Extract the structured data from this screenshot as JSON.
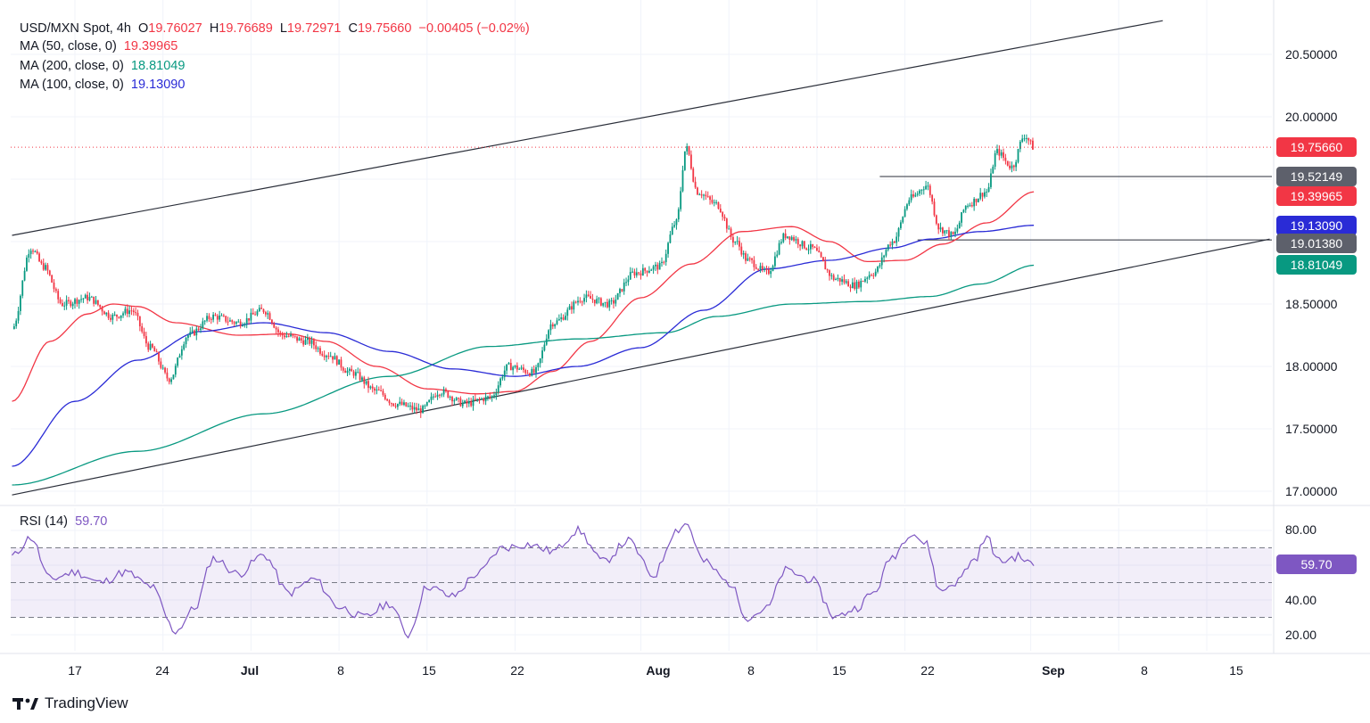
{
  "header": {
    "symbol": "USD/MXN Spot, 4h",
    "o_label": "O",
    "o_value": "19.76027",
    "h_label": "H",
    "h_value": "19.76689",
    "l_label": "L",
    "l_value": "19.72971",
    "c_label": "C",
    "c_value": "19.75660",
    "change": "−0.00405 (−0.02%)"
  },
  "indicators": [
    {
      "label": "MA (50, close, 0)",
      "value": "19.39965",
      "color": "#f23645"
    },
    {
      "label": "MA (200, close, 0)",
      "value": "18.81049",
      "color": "#089981"
    },
    {
      "label": "MA (100, close, 0)",
      "value": "19.13090",
      "color": "#2a2bd6"
    }
  ],
  "rsi": {
    "label": "RSI (14)",
    "value": "59.70",
    "color": "#7e57c2"
  },
  "price_axis": {
    "ticks": [
      "20.50000",
      "20.00000",
      "18.50000",
      "18.00000",
      "17.50000",
      "17.00000"
    ],
    "tick_values": [
      20.5,
      20.0,
      18.5,
      18.0,
      17.5,
      17.0
    ]
  },
  "rsi_axis": {
    "ticks": [
      "80.00",
      "40.00",
      "20.00"
    ],
    "tick_values": [
      80,
      40,
      20
    ]
  },
  "price_labels": [
    {
      "text": "19.75660",
      "value": 19.7566,
      "color": "#f23645"
    },
    {
      "text": "19.52149",
      "value": 19.52149,
      "color": "#5d606b"
    },
    {
      "text": "19.39965",
      "value": 19.39965,
      "color": "#f23645"
    },
    {
      "text": "19.13090",
      "value": 19.1309,
      "color": "#2a2bd6"
    },
    {
      "text": "19.01380",
      "value": 19.0138,
      "color": "#5d606b"
    },
    {
      "text": "18.81049",
      "value": 18.81049,
      "color": "#089981"
    }
  ],
  "time_axis": [
    "17",
    "24",
    "Jul",
    "8",
    "15",
    "22",
    "Aug",
    "8",
    "15",
    "22",
    "Sep",
    "8",
    "15"
  ],
  "brand": "TradingView",
  "chart_data": {
    "type": "candlestick",
    "title": "USD/MXN Spot, 4h",
    "timeframe": "4h",
    "x_range": [
      "Jun 12",
      "Sep 19"
    ],
    "date_ticks": [
      "Jun 17",
      "Jun 24",
      "Jul 1",
      "Jul 8",
      "Jul 15",
      "Jul 22",
      "Aug 1",
      "Aug 8",
      "Aug 15",
      "Aug 22",
      "Sep 1",
      "Sep 8",
      "Sep 15"
    ],
    "date_tick_days": [
      5,
      12,
      19,
      26,
      33,
      40,
      50,
      57,
      64,
      71,
      81,
      88,
      95
    ],
    "ylim": [
      16.88,
      20.85
    ],
    "rsi_ylim": [
      10,
      90
    ],
    "close_path_anchors": [
      [
        0,
        18.3
      ],
      [
        1.5,
        18.95
      ],
      [
        2.5,
        18.8
      ],
      [
        4,
        18.5
      ],
      [
        6,
        18.55
      ],
      [
        8,
        18.4
      ],
      [
        9.5,
        18.45
      ],
      [
        11,
        18.15
      ],
      [
        12.5,
        17.9
      ],
      [
        14,
        18.25
      ],
      [
        16,
        18.4
      ],
      [
        18,
        18.35
      ],
      [
        20,
        18.45
      ],
      [
        21.5,
        18.25
      ],
      [
        23.5,
        18.2
      ],
      [
        25,
        18.1
      ],
      [
        27,
        17.95
      ],
      [
        29,
        17.8
      ],
      [
        30.5,
        17.7
      ],
      [
        32.5,
        17.65
      ],
      [
        34,
        17.8
      ],
      [
        36,
        17.7
      ],
      [
        38,
        17.75
      ],
      [
        39.5,
        18.0
      ],
      [
        41.5,
        17.95
      ],
      [
        43,
        18.35
      ],
      [
        45.5,
        18.55
      ],
      [
        47.5,
        18.5
      ],
      [
        49.5,
        18.75
      ],
      [
        51.5,
        18.8
      ],
      [
        52.8,
        19.15
      ],
      [
        53.6,
        19.75
      ],
      [
        54.5,
        19.4
      ],
      [
        56,
        19.3
      ],
      [
        57.5,
        19.0
      ],
      [
        58.5,
        18.85
      ],
      [
        60,
        18.75
      ],
      [
        61.5,
        19.05
      ],
      [
        63.5,
        18.95
      ],
      [
        65.5,
        18.7
      ],
      [
        67,
        18.65
      ],
      [
        68.5,
        18.75
      ],
      [
        70,
        19.0
      ],
      [
        71.5,
        19.35
      ],
      [
        72.7,
        19.45
      ],
      [
        73.8,
        19.1
      ],
      [
        74.8,
        19.05
      ],
      [
        76,
        19.3
      ],
      [
        77.5,
        19.4
      ],
      [
        78.3,
        19.72
      ],
      [
        79.5,
        19.6
      ],
      [
        80.5,
        19.85
      ],
      [
        81.3,
        19.75
      ]
    ],
    "horizontal_levels": [
      19.52149,
      19.0138
    ],
    "channel": {
      "upper": [
        [
          0,
          19.05
        ],
        [
          91.5,
          20.77
        ]
      ],
      "lower": [
        [
          0,
          16.97
        ],
        [
          100,
          19.02
        ]
      ]
    },
    "series": [
      {
        "name": "MA (50, close, 0)",
        "last": 19.39965,
        "color": "#f23645",
        "anchors": [
          [
            0,
            17.72
          ],
          [
            3,
            18.2
          ],
          [
            6,
            18.42
          ],
          [
            8,
            18.5
          ],
          [
            10,
            18.48
          ],
          [
            13,
            18.35
          ],
          [
            18,
            18.25
          ],
          [
            22,
            18.26
          ],
          [
            25,
            18.2
          ],
          [
            29,
            18.0
          ],
          [
            33,
            17.82
          ],
          [
            37,
            17.78
          ],
          [
            40,
            17.8
          ],
          [
            43,
            17.96
          ],
          [
            46,
            18.2
          ],
          [
            50,
            18.55
          ],
          [
            54,
            18.82
          ],
          [
            58,
            19.08
          ],
          [
            62,
            19.12
          ],
          [
            65,
            19.0
          ],
          [
            68,
            18.84
          ],
          [
            71,
            18.85
          ],
          [
            74,
            18.98
          ],
          [
            77.5,
            19.15
          ],
          [
            81.3,
            19.39965
          ]
        ]
      },
      {
        "name": "MA (200, close, 0)",
        "last": 18.81049,
        "color": "#089981",
        "anchors": [
          [
            0,
            17.05
          ],
          [
            10,
            17.32
          ],
          [
            20,
            17.62
          ],
          [
            30,
            17.92
          ],
          [
            38,
            18.16
          ],
          [
            45,
            18.22
          ],
          [
            52,
            18.27
          ],
          [
            56,
            18.4
          ],
          [
            62,
            18.5
          ],
          [
            68,
            18.52
          ],
          [
            73,
            18.56
          ],
          [
            77,
            18.66
          ],
          [
            81.3,
            18.81049
          ]
        ]
      },
      {
        "name": "MA (100, close, 0)",
        "last": 19.1309,
        "color": "#2a2bd6",
        "anchors": [
          [
            0,
            17.2
          ],
          [
            5,
            17.72
          ],
          [
            10,
            18.05
          ],
          [
            15,
            18.28
          ],
          [
            20,
            18.35
          ],
          [
            25,
            18.27
          ],
          [
            30,
            18.12
          ],
          [
            35,
            17.98
          ],
          [
            40,
            17.92
          ],
          [
            45,
            18.0
          ],
          [
            50,
            18.15
          ],
          [
            55,
            18.45
          ],
          [
            60,
            18.78
          ],
          [
            65,
            18.85
          ],
          [
            70,
            18.95
          ],
          [
            73,
            19.02
          ],
          [
            77,
            19.08
          ],
          [
            81.3,
            19.1309
          ]
        ]
      },
      {
        "name": "RSI (14)",
        "last": 59.7,
        "color": "#7e57c2",
        "anchors": [
          [
            0,
            65
          ],
          [
            1.5,
            76
          ],
          [
            3,
            52
          ],
          [
            5,
            56
          ],
          [
            7,
            50
          ],
          [
            9,
            56
          ],
          [
            11,
            48
          ],
          [
            13,
            22
          ],
          [
            14.5,
            35
          ],
          [
            16,
            64
          ],
          [
            18,
            55
          ],
          [
            20,
            66
          ],
          [
            22,
            44
          ],
          [
            24,
            52
          ],
          [
            26,
            36
          ],
          [
            28,
            30
          ],
          [
            30,
            38
          ],
          [
            31.5,
            20
          ],
          [
            33,
            48
          ],
          [
            35,
            42
          ],
          [
            37,
            55
          ],
          [
            39,
            70
          ],
          [
            41,
            72
          ],
          [
            43,
            68
          ],
          [
            45,
            80
          ],
          [
            47,
            62
          ],
          [
            49,
            74
          ],
          [
            51,
            54
          ],
          [
            52.8,
            80
          ],
          [
            53.6,
            84
          ],
          [
            55,
            62
          ],
          [
            57,
            50
          ],
          [
            58.5,
            30
          ],
          [
            60,
            35
          ],
          [
            61.5,
            57
          ],
          [
            63.5,
            52
          ],
          [
            65.5,
            30
          ],
          [
            67,
            35
          ],
          [
            68.5,
            44
          ],
          [
            70,
            65
          ],
          [
            71.5,
            79
          ],
          [
            72.7,
            72
          ],
          [
            73.8,
            45
          ],
          [
            75,
            50
          ],
          [
            76.5,
            63
          ],
          [
            77.5,
            76
          ],
          [
            78.5,
            62
          ],
          [
            80,
            65
          ],
          [
            81.3,
            59.7
          ]
        ]
      }
    ],
    "rsi_bands": [
      70,
      50,
      30
    ]
  }
}
